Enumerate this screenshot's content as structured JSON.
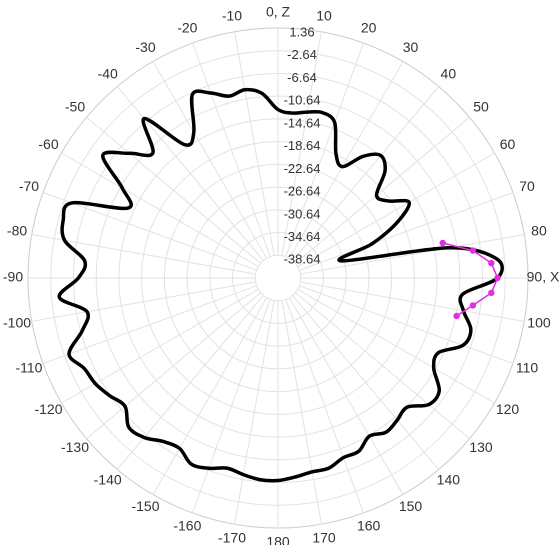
{
  "chart_data": {
    "type": "polar-line",
    "title": "",
    "angle_unit": "deg",
    "angle_tick_labels": [
      {
        "angle": 0,
        "label": "0, Z"
      },
      {
        "angle": 10,
        "label": "10"
      },
      {
        "angle": 20,
        "label": "20"
      },
      {
        "angle": 30,
        "label": "30"
      },
      {
        "angle": 40,
        "label": "40"
      },
      {
        "angle": 50,
        "label": "50"
      },
      {
        "angle": 60,
        "label": "60"
      },
      {
        "angle": 70,
        "label": "70"
      },
      {
        "angle": 80,
        "label": "80"
      },
      {
        "angle": 90,
        "label": "90, X"
      },
      {
        "angle": 100,
        "label": "100"
      },
      {
        "angle": 110,
        "label": "110"
      },
      {
        "angle": 120,
        "label": "120"
      },
      {
        "angle": 130,
        "label": "130"
      },
      {
        "angle": 140,
        "label": "140"
      },
      {
        "angle": 150,
        "label": "150"
      },
      {
        "angle": 160,
        "label": "160"
      },
      {
        "angle": 170,
        "label": "170"
      },
      {
        "angle": 180,
        "label": "180"
      },
      {
        "angle": -170,
        "label": "-170"
      },
      {
        "angle": -160,
        "label": "-160"
      },
      {
        "angle": -150,
        "label": "-150"
      },
      {
        "angle": -140,
        "label": "-140"
      },
      {
        "angle": -130,
        "label": "-130"
      },
      {
        "angle": -120,
        "label": "-120"
      },
      {
        "angle": -110,
        "label": "-110"
      },
      {
        "angle": -100,
        "label": "-100"
      },
      {
        "angle": -90,
        "label": "-90"
      },
      {
        "angle": -80,
        "label": "-80"
      },
      {
        "angle": -70,
        "label": "-70"
      },
      {
        "angle": -60,
        "label": "-60"
      },
      {
        "angle": -50,
        "label": "-50"
      },
      {
        "angle": -40,
        "label": "-40"
      },
      {
        "angle": -30,
        "label": "-30"
      },
      {
        "angle": -20,
        "label": "-20"
      },
      {
        "angle": -10,
        "label": "-10"
      }
    ],
    "radial_ticks": [
      1.36,
      -2.64,
      -6.64,
      -10.64,
      -14.64,
      -18.64,
      -22.64,
      -26.64,
      -30.64,
      -34.64,
      -38.64
    ],
    "rlim": [
      -42.64,
      1.36
    ],
    "grid": true,
    "series": [
      {
        "color": "#000000",
        "theta": [
          0,
          5,
          10,
          15,
          20,
          25,
          30,
          35,
          40,
          45,
          50,
          55,
          60,
          65,
          70,
          75,
          80,
          85,
          90,
          95,
          100,
          105,
          110,
          115,
          120,
          125,
          130,
          135,
          140,
          145,
          150,
          155,
          160,
          165,
          170,
          175,
          180,
          185,
          190,
          195,
          200,
          205,
          210,
          215,
          220,
          225,
          230,
          235,
          240,
          245,
          250,
          255,
          260,
          265,
          270,
          275,
          280,
          285,
          290,
          295,
          300,
          305,
          310,
          315,
          320,
          325,
          330,
          335,
          340,
          345,
          350,
          355
        ],
        "r": [
          -13.0,
          -13.5,
          -13.0,
          -12.5,
          -13.5,
          -18.5,
          -20.0,
          -16.5,
          -14.5,
          -16.0,
          -20.0,
          -19.0,
          -16.0,
          -19.5,
          -25.0,
          -31.0,
          -12.0,
          -4.0,
          -4.0,
          -10.0,
          -9.5,
          -7.5,
          -8.0,
          -11.5,
          -11.0,
          -8.0,
          -8.0,
          -10.5,
          -10.0,
          -9.5,
          -10.5,
          -9.0,
          -9.0,
          -8.0,
          -8.0,
          -7.5,
          -7.0,
          -7.0,
          -7.5,
          -8.0,
          -7.0,
          -6.5,
          -8.0,
          -7.5,
          -6.0,
          -5.5,
          -7.5,
          -6.5,
          -5.5,
          -5.0,
          -3.5,
          -7.0,
          -8.5,
          -4.0,
          -7.5,
          -8.5,
          -4.5,
          -3.5,
          -4.0,
          -13.5,
          -11.0,
          -5.0,
          -8.5,
          -11.5,
          -6.0,
          -14.0,
          -13.0,
          -7.0,
          -8.0,
          -9.5,
          -9.0,
          -10.0
        ]
      },
      {
        "color": "#e02ee0",
        "theta": [
          78,
          82,
          86,
          90,
          94,
          98,
          102
        ],
        "r": [
          -13.0,
          -8.0,
          -5.0,
          -4.0,
          -5.0,
          -8.0,
          -10.5
        ]
      }
    ]
  }
}
